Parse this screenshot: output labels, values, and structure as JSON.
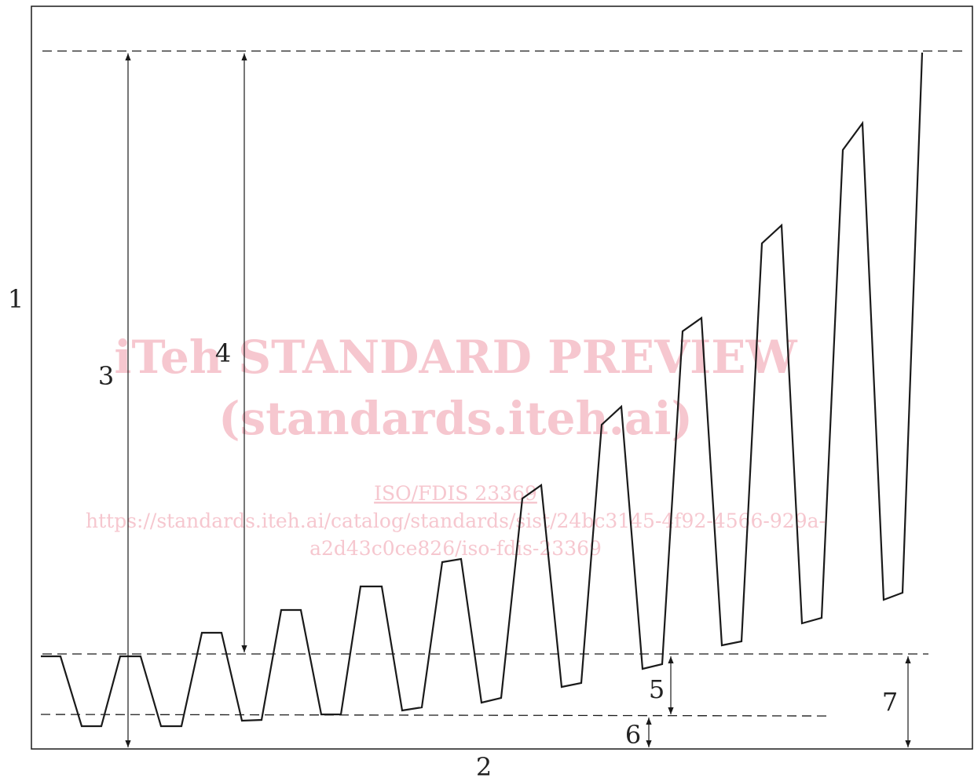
{
  "labels": {
    "l1": "1",
    "l2": "2",
    "l3": "3",
    "l4": "4",
    "l5": "5",
    "l6": "6",
    "l7": "7"
  },
  "watermark": {
    "line1": "iTeh STANDARD PREVIEW",
    "line2": "(standards.iteh.ai)",
    "line3": "ISO/FDIS 23369",
    "line4": "https://standards.iteh.ai/catalog/standards/sist/24bc3145-4f92-4566-929a-",
    "line5": "a2d43c0ce826/iso-fdis-23369"
  },
  "colors": {
    "line": "#1a1a1a",
    "watermark": "#f6c7cf"
  }
}
